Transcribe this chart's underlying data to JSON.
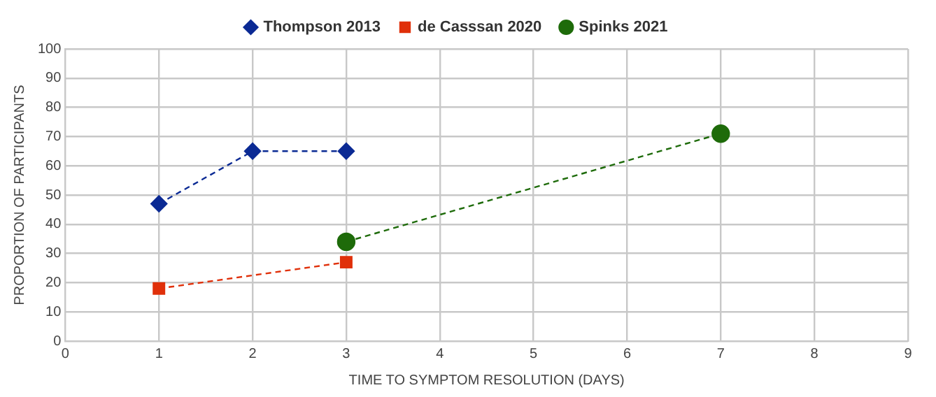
{
  "chart_data": {
    "type": "line",
    "xlabel": "TIME TO SYMPTOM RESOLUTION (DAYS)",
    "ylabel": "PROPORTION OF PARTICIPANTS",
    "series": [
      {
        "name": "Thompson 2013",
        "color": "#0b2a94",
        "marker": "diamond",
        "x": [
          1,
          2,
          3
        ],
        "values": [
          47,
          65,
          65
        ]
      },
      {
        "name": "de Casssan 2020",
        "color": "#e0300a",
        "marker": "square",
        "x": [
          1,
          3
        ],
        "values": [
          18,
          27
        ]
      },
      {
        "name": "Spinks 2021",
        "color": "#1e6b0a",
        "marker": "circle",
        "x": [
          3,
          7
        ],
        "values": [
          34,
          71
        ]
      }
    ],
    "xlim": [
      0,
      9
    ],
    "xticks": [
      0,
      1,
      2,
      3,
      4,
      5,
      6,
      7,
      8,
      9
    ],
    "ylim": [
      0,
      100
    ],
    "yticks": [
      0,
      10,
      20,
      30,
      40,
      50,
      60,
      70,
      80,
      90,
      100
    ],
    "grid": true,
    "legend": "top",
    "line_style": "dashed"
  }
}
